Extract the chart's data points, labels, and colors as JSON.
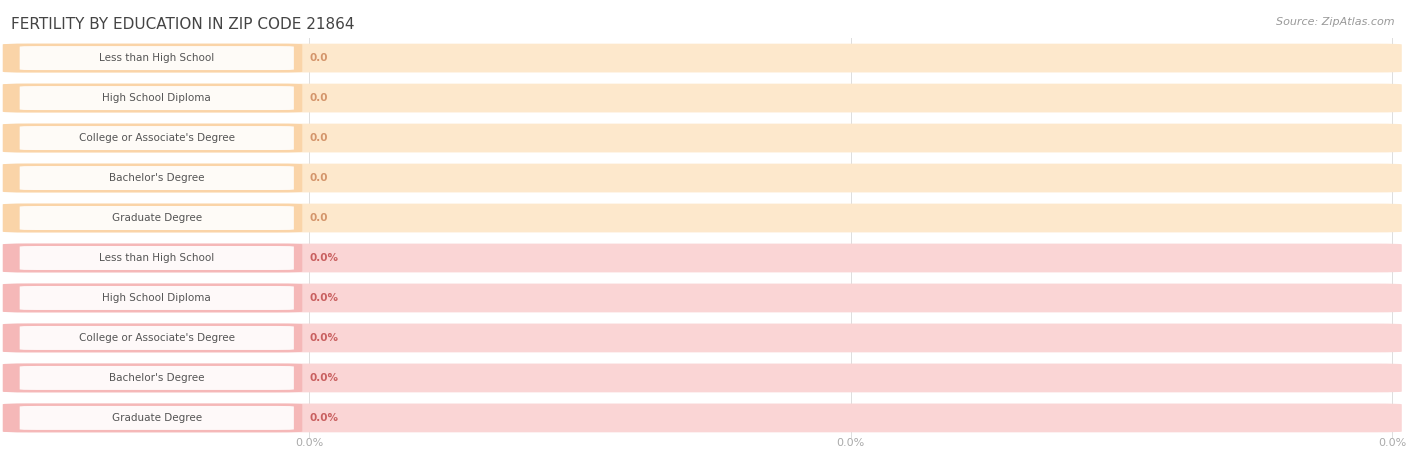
{
  "title": "FERTILITY BY EDUCATION IN ZIP CODE 21864",
  "source": "Source: ZipAtlas.com",
  "categories": [
    "Less than High School",
    "High School Diploma",
    "College or Associate's Degree",
    "Bachelor's Degree",
    "Graduate Degree"
  ],
  "top_values": [
    0.0,
    0.0,
    0.0,
    0.0,
    0.0
  ],
  "top_label_suffix": "",
  "bottom_values": [
    0.0,
    0.0,
    0.0,
    0.0,
    0.0
  ],
  "bottom_label_suffix": "%",
  "top_accent_color": "#f5b97a",
  "top_fill_color": "#fad4a8",
  "top_bg_color": "#fde8cc",
  "top_value_color": "#d4956b",
  "bottom_accent_color": "#f08080",
  "bottom_fill_color": "#f5b8b8",
  "bottom_bg_color": "#fad5d5",
  "bottom_value_color": "#c96060",
  "label_text_color": "#555555",
  "title_color": "#444444",
  "tick_color": "#aaaaaa",
  "bg_color": "#ffffff",
  "grid_color": "#dddddd",
  "fig_width": 14.06,
  "fig_height": 4.76
}
